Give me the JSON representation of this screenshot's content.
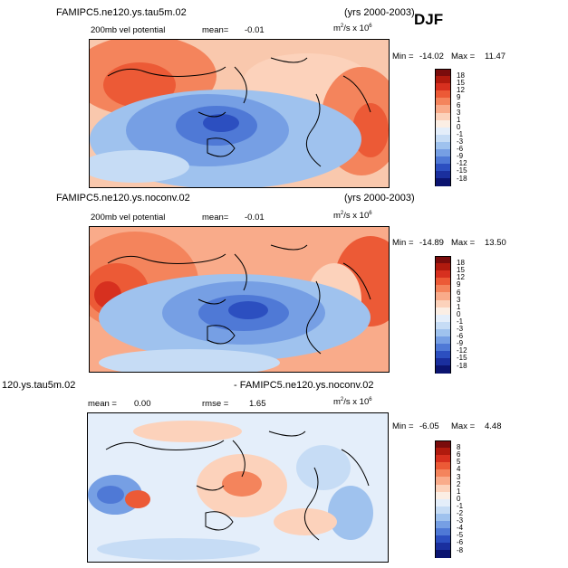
{
  "season": "DJF",
  "panels": [
    {
      "title": "FAMIPC5.ne120.ys.tau5m.02",
      "years": "(yrs 2000-2003)",
      "variable": "200mb vel potential",
      "mean_label": "mean=",
      "mean_value": "-0.01",
      "units_base": "m",
      "units_exp1": "2",
      "units_mid": "/s x 10",
      "units_exp2": "6",
      "min_label": "Min =",
      "min_value": "-14.02",
      "max_label": "Max =",
      "max_value": "11.47",
      "levels": [
        "18",
        "15",
        "12",
        "9",
        "6",
        "3",
        "1",
        "0",
        "-1",
        "-3",
        "-6",
        "-9",
        "-12",
        "-15",
        "-18"
      ]
    },
    {
      "title": "FAMIPC5.ne120.ys.noconv.02",
      "years": "(yrs 2000-2003)",
      "variable": "200mb vel potential",
      "mean_label": "mean=",
      "mean_value": "-0.01",
      "units_base": "m",
      "units_exp1": "2",
      "units_mid": "/s x 10",
      "units_exp2": "6",
      "min_label": "Min =",
      "min_value": "-14.89",
      "max_label": "Max =",
      "max_value": "13.50",
      "levels": [
        "18",
        "15",
        "12",
        "9",
        "6",
        "3",
        "1",
        "0",
        "-1",
        "-3",
        "-6",
        "-9",
        "-12",
        "-15",
        "-18"
      ]
    },
    {
      "title_left": "120.ys.tau5m.02",
      "title_right": "- FAMIPC5.ne120.ys.noconv.02",
      "mean_label": "mean =",
      "mean_value": "0.00",
      "rmse_label": "rmse =",
      "rmse_value": "1.65",
      "units_base": "m",
      "units_exp1": "2",
      "units_mid": "/s x 10",
      "units_exp2": "6",
      "min_label": "Min =",
      "min_value": "-6.05",
      "max_label": "Max =",
      "max_value": "4.48",
      "levels": [
        "8",
        "6",
        "5",
        "4",
        "3",
        "2",
        "1",
        "0",
        "-1",
        "-2",
        "-3",
        "-4",
        "-5",
        "-6",
        "-8"
      ]
    }
  ],
  "colors": {
    "scale": [
      "#7a0c0c",
      "#b01a0e",
      "#d7301f",
      "#ec5a36",
      "#f4845c",
      "#f9ab8a",
      "#fcd2bb",
      "#fbeee4",
      "#e4eefa",
      "#c6dcf5",
      "#9fc2ee",
      "#769fe4",
      "#4f79d6",
      "#2c4fc0",
      "#1a2f9e",
      "#0b1470"
    ]
  }
}
